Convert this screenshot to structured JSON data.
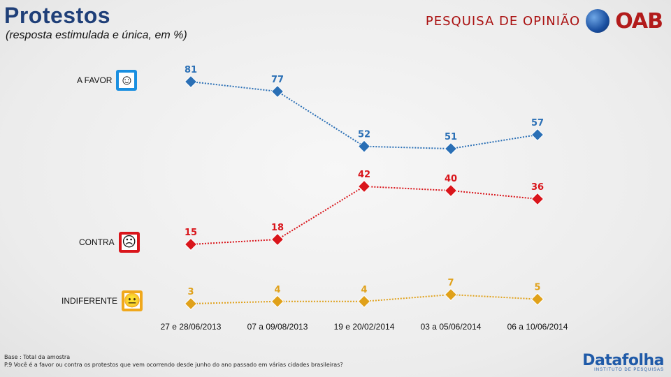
{
  "header": {
    "title": "Protestos",
    "subtitle": "(resposta estimulada e única, em %)",
    "brand_text": "PESQUISA DE OPINIÃO",
    "brand_logo": "OAB"
  },
  "legend": [
    {
      "label": "A FAVOR",
      "icon": "smile-face-icon",
      "color": "#1a8fe0"
    },
    {
      "label": "CONTRA",
      "icon": "sad-face-icon",
      "color": "#d9151b"
    },
    {
      "label": "INDIFERENTE",
      "icon": "neutral-face-icon",
      "color": "#f0a81c"
    }
  ],
  "chart_data": {
    "type": "line",
    "title": "Protestos",
    "categories": [
      "27 e 28/06/2013",
      "07 a 09/08/2013",
      "19 e 20/02/2014",
      "03 a 05/06/2014",
      "06 a 10/06/2014"
    ],
    "series": [
      {
        "name": "A FAVOR",
        "values": [
          81,
          77,
          52,
          51,
          57
        ],
        "color": "#2a6fb5"
      },
      {
        "name": "CONTRA",
        "values": [
          15,
          18,
          42,
          40,
          36
        ],
        "color": "#d9151b"
      },
      {
        "name": "INDIFERENTE",
        "values": [
          3,
          4,
          4,
          7,
          5
        ],
        "color": "#e0a11a"
      }
    ],
    "ylim": [
      0,
      100
    ],
    "grid": false,
    "legend_position": "left"
  },
  "footer": {
    "base": "Base : Total da amostra",
    "question": "P.9 Você é a favor ou contra os protestos que vem ocorrendo desde junho do ano passado em várias cidades brasileiras?"
  },
  "source": {
    "name": "Datafolha",
    "tagline": "INSTITUTO DE PESQUISAS"
  }
}
